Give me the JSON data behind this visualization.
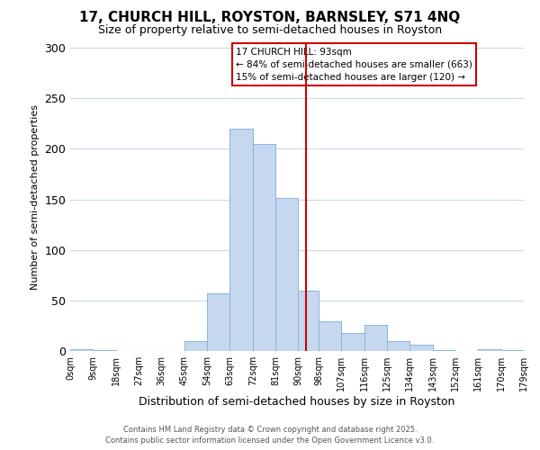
{
  "title": "17, CHURCH HILL, ROYSTON, BARNSLEY, S71 4NQ",
  "subtitle": "Size of property relative to semi-detached houses in Royston",
  "xlabel": "Distribution of semi-detached houses by size in Royston",
  "ylabel": "Number of semi-detached properties",
  "bin_edges": [
    0,
    9,
    18,
    27,
    36,
    45,
    54,
    63,
    72,
    81,
    90,
    98,
    107,
    116,
    125,
    134,
    143,
    152,
    161,
    170,
    179
  ],
  "bar_heights": [
    2,
    1,
    0,
    0,
    0,
    10,
    57,
    220,
    205,
    151,
    60,
    29,
    18,
    26,
    10,
    6,
    1,
    0,
    2,
    1
  ],
  "bar_color": "#c5d8f0",
  "bar_edge_color": "#8ab4d8",
  "vline_x": 93,
  "vline_color": "#cc0000",
  "legend_title": "17 CHURCH HILL: 93sqm",
  "legend_line1": "← 84% of semi-detached houses are smaller (663)",
  "legend_line2": "15% of semi-detached houses are larger (120) →",
  "ylim": [
    0,
    305
  ],
  "xlim": [
    0,
    179
  ],
  "tick_labels": [
    "0sqm",
    "9sqm",
    "18sqm",
    "27sqm",
    "36sqm",
    "45sqm",
    "54sqm",
    "63sqm",
    "72sqm",
    "81sqm",
    "90sqm",
    "98sqm",
    "107sqm",
    "116sqm",
    "125sqm",
    "134sqm",
    "143sqm",
    "152sqm",
    "161sqm",
    "170sqm",
    "179sqm"
  ],
  "footer_line1": "Contains HM Land Registry data © Crown copyright and database right 2025.",
  "footer_line2": "Contains public sector information licensed under the Open Government Licence v3.0.",
  "background_color": "#ffffff",
  "grid_color": "#c8d8e8",
  "title_fontsize": 11,
  "subtitle_fontsize": 9,
  "ylabel_fontsize": 8,
  "xlabel_fontsize": 9,
  "tick_fontsize": 7,
  "footer_fontsize": 6
}
